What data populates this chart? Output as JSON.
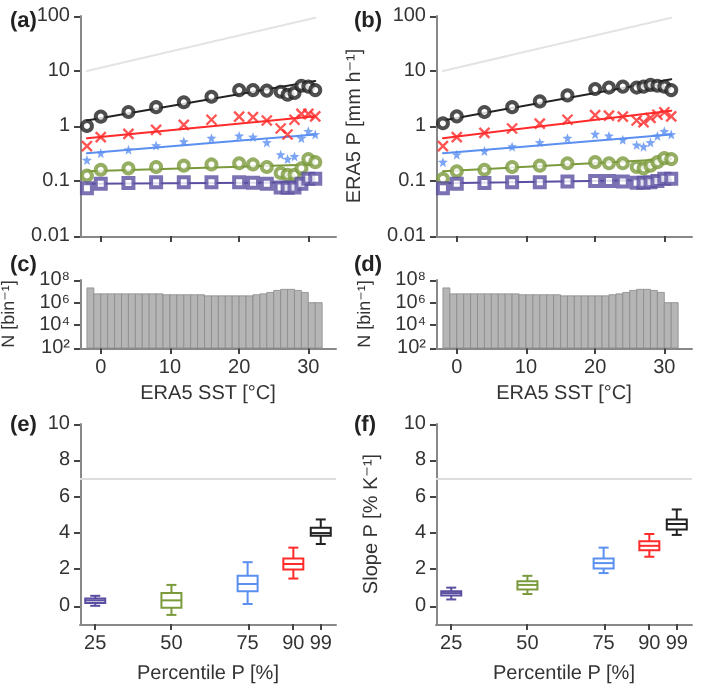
{
  "chart_data": [
    {
      "type": "scatter",
      "title": "(a)",
      "x": [
        -2,
        0,
        4,
        8,
        12,
        16,
        20,
        22,
        24,
        26,
        27,
        28,
        29,
        30,
        31
      ],
      "xlim": [
        -3,
        34
      ],
      "xticks": [
        0,
        10,
        20,
        30
      ],
      "ylim": [
        0.01,
        100
      ],
      "yticks": [
        0.01,
        0.1,
        1,
        10,
        100
      ],
      "log": "y",
      "tick_labels": "y",
      "series": [
        {
          "type": "line",
          "values": [
            10,
            null,
            null,
            null,
            null,
            null,
            null,
            null,
            null,
            null,
            null,
            null,
            null,
            null,
            93
          ],
          "color": "#e3e3e3",
          "marker": "none"
        },
        {
          "color": "#222222",
          "marker": "circle",
          "values": [
            1.0,
            1.48,
            1.8,
            2.2,
            2.7,
            3.4,
            4.5,
            4.5,
            4.4,
            4.2,
            3.7,
            4.0,
            5.4,
            5.2,
            4.5
          ]
        },
        {
          "type": "line",
          "values": [
            1.26,
            null,
            null,
            null,
            null,
            null,
            null,
            null,
            null,
            null,
            null,
            null,
            null,
            null,
            6.6
          ],
          "color": "#222222",
          "marker": "none"
        },
        {
          "color": "#ff2a2a",
          "marker": "cross",
          "values": [
            0.43,
            0.63,
            0.72,
            0.85,
            1.05,
            1.3,
            1.48,
            1.45,
            1.26,
            0.9,
            0.7,
            1.3,
            1.66,
            1.66,
            1.5
          ]
        },
        {
          "type": "line",
          "values": [
            0.6,
            null,
            null,
            null,
            null,
            null,
            null,
            null,
            null,
            null,
            null,
            null,
            null,
            null,
            1.5
          ],
          "color": "#ff2a2a",
          "marker": "none"
        },
        {
          "color": "#5b8ff0",
          "marker": "star",
          "values": [
            0.24,
            0.32,
            0.37,
            0.44,
            0.52,
            0.6,
            0.66,
            0.63,
            0.5,
            0.3,
            0.25,
            0.28,
            0.6,
            0.8,
            0.7
          ]
        },
        {
          "type": "line",
          "values": [
            0.32,
            null,
            null,
            null,
            null,
            null,
            null,
            null,
            null,
            null,
            null,
            null,
            null,
            null,
            0.7
          ],
          "color": "#5b8ff0",
          "marker": "none"
        },
        {
          "color": "#7a9a3c",
          "marker": "circle",
          "values": [
            0.126,
            0.16,
            0.17,
            0.18,
            0.19,
            0.2,
            0.21,
            0.2,
            0.18,
            0.14,
            0.13,
            0.13,
            0.17,
            0.25,
            0.22
          ]
        },
        {
          "type": "line",
          "values": [
            0.15,
            null,
            null,
            null,
            null,
            null,
            null,
            null,
            null,
            null,
            null,
            null,
            null,
            null,
            0.2
          ],
          "color": "#7a9a3c",
          "marker": "none"
        },
        {
          "color": "#5a4fa0",
          "marker": "square",
          "values": [
            0.074,
            0.089,
            0.092,
            0.095,
            0.095,
            0.095,
            0.095,
            0.093,
            0.089,
            0.076,
            0.075,
            0.076,
            0.089,
            0.11,
            0.11
          ]
        },
        {
          "type": "line",
          "values": [
            0.089,
            null,
            null,
            null,
            null,
            null,
            null,
            null,
            null,
            null,
            null,
            null,
            null,
            null,
            0.095
          ],
          "color": "#5a4fa0",
          "marker": "none"
        }
      ]
    },
    {
      "type": "scatter",
      "title": "(b)",
      "ylabel": "ERA5 P [mm h⁻¹]",
      "x": [
        -2,
        0,
        4,
        8,
        12,
        16,
        20,
        22,
        24,
        26,
        27,
        28,
        29,
        30,
        31
      ],
      "xlim": [
        -3,
        34
      ],
      "xticks": [
        0,
        10,
        20,
        30
      ],
      "ylim": [
        0.01,
        100
      ],
      "yticks": [
        0.01,
        0.1,
        1,
        10,
        100
      ],
      "log": "y",
      "tick_labels": "y",
      "series": [
        {
          "type": "line",
          "values": [
            10,
            null,
            null,
            null,
            null,
            null,
            null,
            null,
            null,
            null,
            null,
            null,
            null,
            null,
            93
          ],
          "color": "#e3e3e3",
          "marker": "none"
        },
        {
          "color": "#222222",
          "marker": "circle",
          "values": [
            1.12,
            1.5,
            1.8,
            2.2,
            2.8,
            3.6,
            4.7,
            5.0,
            5.2,
            5.0,
            5.2,
            5.6,
            5.4,
            5.2,
            4.5
          ]
        },
        {
          "type": "line",
          "values": [
            1.26,
            null,
            null,
            null,
            null,
            null,
            null,
            null,
            null,
            null,
            null,
            null,
            null,
            null,
            7.1
          ],
          "color": "#222222",
          "marker": "none"
        },
        {
          "color": "#ff2a2a",
          "marker": "cross",
          "values": [
            0.43,
            0.63,
            0.75,
            0.9,
            1.1,
            1.3,
            1.58,
            1.55,
            1.48,
            1.26,
            1.17,
            1.4,
            1.6,
            1.78,
            1.5
          ]
        },
        {
          "type": "line",
          "values": [
            0.6,
            null,
            null,
            null,
            null,
            null,
            null,
            null,
            null,
            null,
            null,
            null,
            null,
            null,
            1.9
          ],
          "color": "#ff2a2a",
          "marker": "none"
        },
        {
          "color": "#5b8ff0",
          "marker": "star",
          "values": [
            0.22,
            0.3,
            0.35,
            0.42,
            0.5,
            0.6,
            0.71,
            0.66,
            0.56,
            0.45,
            0.42,
            0.5,
            0.66,
            0.8,
            0.7
          ]
        },
        {
          "type": "line",
          "values": [
            0.32,
            null,
            null,
            null,
            null,
            null,
            null,
            null,
            null,
            null,
            null,
            null,
            null,
            null,
            0.7
          ],
          "color": "#5b8ff0",
          "marker": "none"
        },
        {
          "color": "#7a9a3c",
          "marker": "circle",
          "values": [
            0.11,
            0.15,
            0.16,
            0.18,
            0.19,
            0.21,
            0.22,
            0.21,
            0.21,
            0.18,
            0.17,
            0.19,
            0.22,
            0.26,
            0.25
          ]
        },
        {
          "type": "line",
          "values": [
            0.15,
            null,
            null,
            null,
            null,
            null,
            null,
            null,
            null,
            null,
            null,
            null,
            null,
            null,
            0.25
          ],
          "color": "#7a9a3c",
          "marker": "none"
        },
        {
          "color": "#5a4fa0",
          "marker": "square",
          "values": [
            0.074,
            0.089,
            0.092,
            0.095,
            0.095,
            0.098,
            0.1,
            0.1,
            0.098,
            0.093,
            0.093,
            0.095,
            0.1,
            0.11,
            0.11
          ]
        },
        {
          "type": "line",
          "values": [
            0.091,
            null,
            null,
            null,
            null,
            null,
            null,
            null,
            null,
            null,
            null,
            null,
            null,
            null,
            0.105
          ],
          "color": "#5a4fa0",
          "marker": "none"
        }
      ]
    },
    {
      "type": "histogram",
      "title": "(c)",
      "xlabel": "ERA5 SST [°C]",
      "ylabel": "N [bin⁻¹]",
      "color": "#b5b5b5",
      "log": "y",
      "xlim": [
        -3,
        34
      ],
      "xticks": [
        0,
        10,
        20,
        30
      ],
      "ylim": [
        100,
        100000000
      ],
      "yticks": [
        {
          "value": 100,
          "label": "10²"
        },
        {
          "value": 10000,
          "label": "10⁴"
        },
        {
          "value": 1000000,
          "label": "10⁶"
        },
        {
          "value": 100000000,
          "label": "10⁸"
        }
      ],
      "bins": [
        -2,
        -1,
        0,
        1,
        2,
        3,
        4,
        5,
        6,
        7,
        8,
        9,
        10,
        11,
        12,
        13,
        14,
        15,
        16,
        17,
        18,
        19,
        20,
        21,
        22,
        23,
        24,
        25,
        26,
        27,
        28,
        29,
        30,
        31,
        32
      ],
      "values": [
        20000000,
        6000000,
        6000000,
        6000000,
        6000000,
        6000000,
        6000000,
        6000000,
        6000000,
        6000000,
        6000000,
        5000000,
        5000000,
        5000000,
        5000000,
        5000000,
        5000000,
        4000000,
        4000000,
        4000000,
        4000000,
        4000000,
        4000000,
        4000000,
        5000000,
        6000000,
        8000000,
        12000000,
        15000000,
        15000000,
        12000000,
        8000000,
        1000000,
        1000000
      ]
    },
    {
      "type": "histogram",
      "title": "(d)",
      "xlabel": "ERA5 SST [°C]",
      "ylabel": "N [bin⁻¹]",
      "color": "#b5b5b5",
      "log": "y",
      "xlim": [
        -3,
        34
      ],
      "xticks": [
        0,
        10,
        20,
        30
      ],
      "ylim": [
        100,
        100000000
      ],
      "yticks": [
        {
          "value": 100,
          "label": "10²"
        },
        {
          "value": 10000,
          "label": "10⁴"
        },
        {
          "value": 1000000,
          "label": "10⁶"
        },
        {
          "value": 100000000,
          "label": "10⁸"
        }
      ],
      "bins": [
        -2,
        -1,
        0,
        1,
        2,
        3,
        4,
        5,
        6,
        7,
        8,
        9,
        10,
        11,
        12,
        13,
        14,
        15,
        16,
        17,
        18,
        19,
        20,
        21,
        22,
        23,
        24,
        25,
        26,
        27,
        28,
        29,
        30,
        31,
        32
      ],
      "values": [
        20000000,
        6000000,
        6000000,
        6000000,
        6000000,
        6000000,
        6000000,
        6000000,
        6000000,
        6000000,
        6000000,
        5000000,
        5000000,
        5000000,
        5000000,
        5000000,
        5000000,
        4000000,
        4000000,
        4000000,
        4000000,
        4000000,
        4000000,
        4000000,
        5000000,
        6000000,
        8000000,
        12000000,
        15000000,
        15000000,
        12000000,
        8000000,
        1000000,
        1000000
      ]
    },
    {
      "type": "box",
      "title": "(e)",
      "xlabel": "Percentile P [%]",
      "x": [
        25,
        50,
        75,
        90,
        99
      ],
      "xlim": [
        20,
        104
      ],
      "xticks": [
        25,
        50,
        75,
        90,
        99
      ],
      "ylim": [
        -1,
        10
      ],
      "yticks": [
        0,
        2,
        4,
        6,
        8,
        10
      ],
      "colors": [
        "#5a4fa0",
        "#7a9a3c",
        "#5b8ff0",
        "#ff2a2a",
        "#222222"
      ],
      "boxes": [
        {
          "low": 0.0,
          "q1": 0.15,
          "median": 0.3,
          "q3": 0.4,
          "high": 0.55
        },
        {
          "low": -0.5,
          "q1": -0.1,
          "median": 0.3,
          "q3": 0.7,
          "high": 1.15
        },
        {
          "low": 0.1,
          "q1": 0.8,
          "median": 1.2,
          "q3": 1.65,
          "high": 2.4
        },
        {
          "low": 1.5,
          "q1": 2.0,
          "median": 2.3,
          "q3": 2.6,
          "high": 3.2
        },
        {
          "low": 3.4,
          "q1": 3.85,
          "median": 4.0,
          "q3": 4.3,
          "high": 4.75
        }
      ],
      "ref_lines": [
        {
          "axis": "y",
          "value": 7,
          "color": "#dddddd"
        }
      ]
    },
    {
      "type": "box",
      "title": "(f)",
      "xlabel": "Percentile P [%]",
      "ylabel": "Slope P [% K⁻¹]",
      "x": [
        25,
        50,
        75,
        90,
        99
      ],
      "xlim": [
        20,
        104
      ],
      "xticks": [
        25,
        50,
        75,
        90,
        99
      ],
      "ylim": [
        -1,
        10
      ],
      "yticks": [
        0,
        2,
        4,
        6,
        8,
        10
      ],
      "colors": [
        "#5a4fa0",
        "#7a9a3c",
        "#5b8ff0",
        "#ff2a2a",
        "#222222"
      ],
      "boxes": [
        {
          "low": 0.35,
          "q1": 0.57,
          "median": 0.7,
          "q3": 0.8,
          "high": 1.0
        },
        {
          "low": 0.65,
          "q1": 0.9,
          "median": 1.15,
          "q3": 1.35,
          "high": 1.65
        },
        {
          "low": 1.8,
          "q1": 2.05,
          "median": 2.35,
          "q3": 2.6,
          "high": 3.2
        },
        {
          "low": 2.7,
          "q1": 3.05,
          "median": 3.3,
          "q3": 3.55,
          "high": 3.95
        },
        {
          "low": 3.9,
          "q1": 4.2,
          "median": 4.5,
          "q3": 4.75,
          "high": 5.3
        }
      ],
      "ref_lines": [
        {
          "axis": "y",
          "value": 7,
          "color": "#dddddd"
        }
      ]
    }
  ]
}
